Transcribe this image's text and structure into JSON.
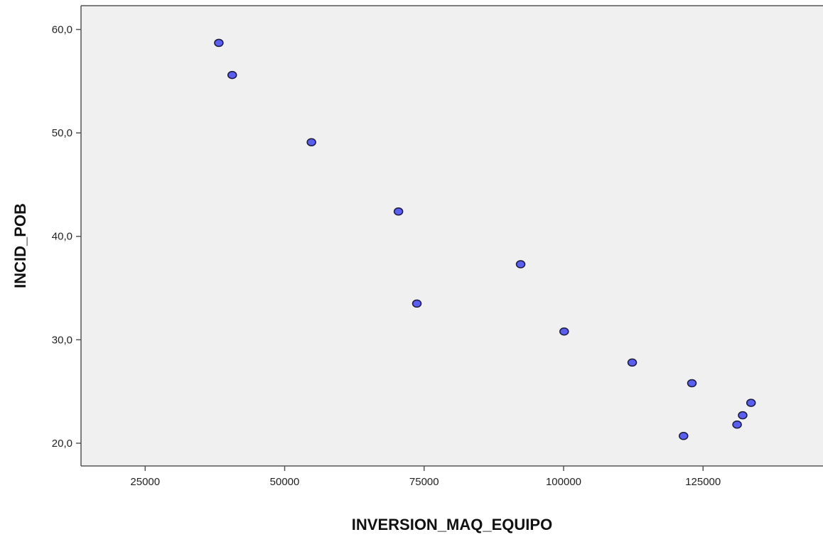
{
  "chart_data": {
    "type": "scatter",
    "title": "",
    "xlabel": "INVERSION_MAQ_EQUIPO",
    "ylabel": "INCID_POB",
    "xlim": [
      13500,
      146500
    ],
    "ylim": [
      17.8,
      62.3
    ],
    "x_ticks": [
      25000,
      50000,
      75000,
      100000,
      125000
    ],
    "x_tick_labels": [
      "25000",
      "50000",
      "75000",
      "100000",
      "125000"
    ],
    "y_ticks": [
      20,
      30,
      40,
      50,
      60
    ],
    "y_tick_labels": [
      "20,0",
      "30,0",
      "40,0",
      "50,0",
      "60,0"
    ],
    "grid": false,
    "legend": "none",
    "colors": {
      "plot_background": "#f0f0f0",
      "marker_fill": "#5a5ff0",
      "marker_edge": "#1a1a40",
      "axis": "#555555"
    },
    "points": [
      {
        "x": 38200,
        "y": 58.7
      },
      {
        "x": 40600,
        "y": 55.6
      },
      {
        "x": 54800,
        "y": 49.1
      },
      {
        "x": 70400,
        "y": 42.4
      },
      {
        "x": 73700,
        "y": 33.5
      },
      {
        "x": 92300,
        "y": 37.3
      },
      {
        "x": 100100,
        "y": 30.8
      },
      {
        "x": 112300,
        "y": 27.8
      },
      {
        "x": 121500,
        "y": 20.7
      },
      {
        "x": 123000,
        "y": 25.8
      },
      {
        "x": 131100,
        "y": 21.8
      },
      {
        "x": 132100,
        "y": 22.7
      },
      {
        "x": 133600,
        "y": 23.9
      }
    ]
  }
}
